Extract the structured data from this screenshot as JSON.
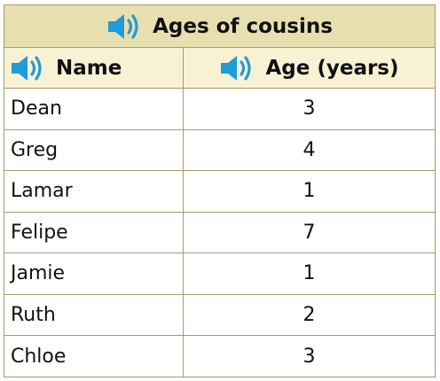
{
  "table": {
    "title": "Ages of cousins",
    "columns": [
      "Name",
      "Age (years)"
    ],
    "rows": [
      {
        "name": "Dean",
        "age": "3"
      },
      {
        "name": "Greg",
        "age": "4"
      },
      {
        "name": "Lamar",
        "age": "1"
      },
      {
        "name": "Felipe",
        "age": "7"
      },
      {
        "name": "Jamie",
        "age": "1"
      },
      {
        "name": "Ruth",
        "age": "2"
      },
      {
        "name": "Chloe",
        "age": "3"
      }
    ]
  },
  "colors": {
    "title_bg": "#e8dfb0",
    "header_bg": "#f8f1d4",
    "border": "#a89a6a",
    "speaker_icon": "#1f9bd7"
  },
  "icons": {
    "audio": "speaker-icon"
  }
}
